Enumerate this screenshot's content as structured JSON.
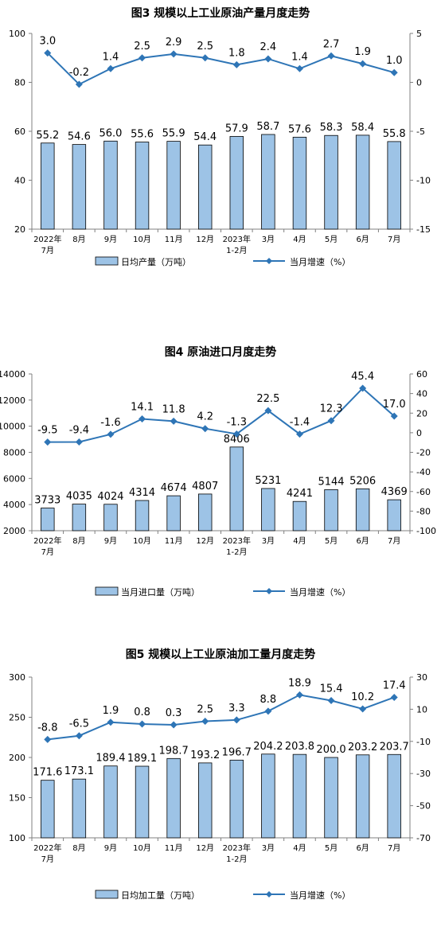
{
  "chart_data": [
    {
      "type": "bar",
      "title": "图3  规模以上工业原油产量月度走势",
      "categories": [
        "2022年\n7月",
        "8月",
        "9月",
        "10月",
        "11月",
        "12月",
        "2023年\n1-2月",
        "3月",
        "4月",
        "5月",
        "6月",
        "7月"
      ],
      "series": [
        {
          "name": "日均产量（万吨）",
          "type": "bar",
          "axis": "left",
          "values": [
            55.2,
            54.6,
            56.0,
            55.6,
            55.9,
            54.4,
            57.9,
            58.7,
            57.6,
            58.3,
            58.4,
            55.8
          ],
          "labels": [
            "55.2",
            "54.6",
            "56.0",
            "55.6",
            "55.9",
            "54.4",
            "57.9",
            "58.7",
            "57.6",
            "58.3",
            "58.4",
            "55.8"
          ]
        },
        {
          "name": "当月增速（%）",
          "type": "line",
          "axis": "right",
          "values": [
            3.0,
            -0.2,
            1.4,
            2.5,
            2.9,
            2.5,
            1.8,
            2.4,
            1.4,
            2.7,
            1.9,
            1.0
          ],
          "labels": [
            "3.0",
            "-0.2",
            "1.4",
            "2.5",
            "2.9",
            "2.5",
            "1.8",
            "2.4",
            "1.4",
            "2.7",
            "1.9",
            "1.0"
          ]
        }
      ],
      "y_left": {
        "min": 20,
        "max": 100,
        "ticks": [
          "20",
          "40",
          "60",
          "80",
          "100"
        ]
      },
      "y_right": {
        "min": -15,
        "max": 5,
        "ticks": [
          "-15",
          "-10",
          "-5",
          "0",
          "5"
        ]
      },
      "colors": {
        "bar_fill": "#9dc3e6",
        "bar_stroke": "#000000",
        "line": "#2e75b6"
      },
      "legend_position": "bottom"
    },
    {
      "type": "bar",
      "title": "图4  原油进口月度走势",
      "categories": [
        "2022年\n7月",
        "8月",
        "9月",
        "10月",
        "11月",
        "12月",
        "2023年\n1-2月",
        "3月",
        "4月",
        "5月",
        "6月",
        "7月"
      ],
      "series": [
        {
          "name": "当月进口量（万吨）",
          "type": "bar",
          "axis": "left",
          "values": [
            3733,
            4035,
            4024,
            4314,
            4674,
            4807,
            8406,
            5231,
            4241,
            5144,
            5206,
            4369
          ],
          "labels": [
            "3733",
            "4035",
            "4024",
            "4314",
            "4674",
            "4807",
            "8406",
            "5231",
            "4241",
            "5144",
            "5206",
            "4369"
          ]
        },
        {
          "name": "当月增速（%）",
          "type": "line",
          "axis": "right",
          "values": [
            -9.5,
            -9.4,
            -1.6,
            14.1,
            11.8,
            4.2,
            -1.3,
            22.5,
            -1.4,
            12.3,
            45.4,
            17.0
          ],
          "labels": [
            "-9.5",
            "-9.4",
            "-1.6",
            "14.1",
            "11.8",
            "4.2",
            "-1.3",
            "22.5",
            "-1.4",
            "12.3",
            "45.4",
            "17.0"
          ]
        }
      ],
      "y_left": {
        "min": 2000,
        "max": 14000,
        "ticks": [
          "2000",
          "4000",
          "6000",
          "8000",
          "10000",
          "12000",
          "14000"
        ]
      },
      "y_right": {
        "min": -100,
        "max": 60,
        "ticks": [
          "-100",
          "-80",
          "-60",
          "-40",
          "-20",
          "0",
          "20",
          "40",
          "60"
        ]
      },
      "colors": {
        "bar_fill": "#9dc3e6",
        "bar_stroke": "#000000",
        "line": "#2e75b6"
      },
      "legend_position": "bottom"
    },
    {
      "type": "bar",
      "title": "图5  规模以上工业原油加工量月度走势",
      "categories": [
        "2022年\n7月",
        "8月",
        "9月",
        "10月",
        "11月",
        "12月",
        "2023年\n1-2月",
        "3月",
        "4月",
        "5月",
        "6月",
        "7月"
      ],
      "series": [
        {
          "name": "日均加工量（万吨）",
          "type": "bar",
          "axis": "left",
          "values": [
            171.6,
            173.1,
            189.4,
            189.1,
            198.7,
            193.2,
            196.7,
            204.2,
            203.8,
            200.0,
            203.2,
            203.7
          ],
          "labels": [
            "171.6",
            "173.1",
            "189.4",
            "189.1",
            "198.7",
            "193.2",
            "196.7",
            "204.2",
            "203.8",
            "200.0",
            "203.2",
            "203.7"
          ]
        },
        {
          "name": "当月增速（%）",
          "type": "line",
          "axis": "right",
          "values": [
            -8.8,
            -6.5,
            1.9,
            0.8,
            0.3,
            2.5,
            3.3,
            8.8,
            18.9,
            15.4,
            10.2,
            17.4
          ],
          "labels": [
            "-8.8",
            "-6.5",
            "1.9",
            "0.8",
            "0.3",
            "2.5",
            "3.3",
            "8.8",
            "18.9",
            "15.4",
            "10.2",
            "17.4"
          ]
        }
      ],
      "y_left": {
        "min": 100,
        "max": 300,
        "ticks": [
          "100",
          "150",
          "200",
          "250",
          "300"
        ]
      },
      "y_right": {
        "min": -70,
        "max": 30,
        "ticks": [
          "-70",
          "-50",
          "-30",
          "-10",
          "10",
          "30"
        ]
      },
      "colors": {
        "bar_fill": "#9dc3e6",
        "bar_stroke": "#000000",
        "line": "#2e75b6"
      },
      "legend_position": "bottom"
    }
  ]
}
